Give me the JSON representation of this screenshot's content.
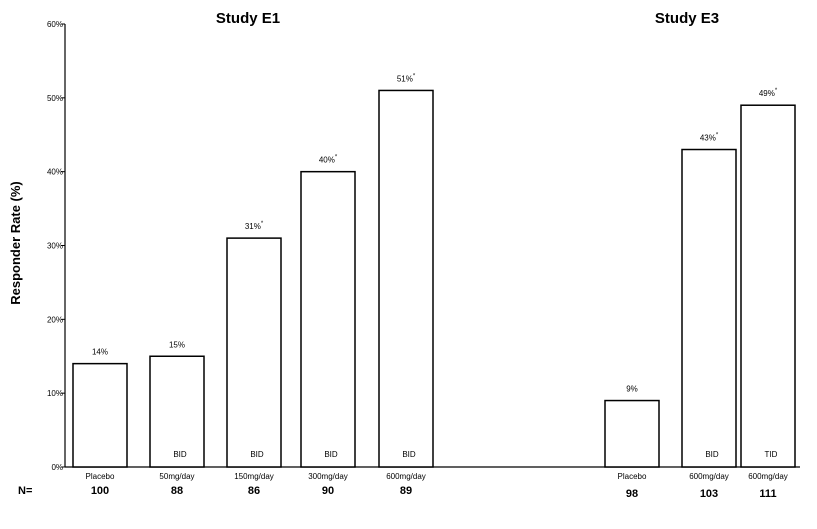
{
  "chart_data": {
    "type": "bar",
    "ylabel": "Responder Rate (%)",
    "ylim": [
      0,
      60
    ],
    "yticks": [
      "0%",
      "10%",
      "20%",
      "30%",
      "40%",
      "50%",
      "60%"
    ],
    "grid": false,
    "n_label": "N=",
    "groups": [
      {
        "title": "Study E1",
        "bars": [
          {
            "category": "Placebo",
            "value": 14,
            "label": "14%",
            "inner": "",
            "n": "100"
          },
          {
            "category": "50mg/day",
            "value": 15,
            "label": "15%",
            "inner": "BID",
            "n": "88"
          },
          {
            "category": "150mg/day",
            "value": 31,
            "label": "31%*",
            "inner": "BID",
            "n": "86"
          },
          {
            "category": "300mg/day",
            "value": 40,
            "label": "40%*",
            "inner": "BID",
            "n": "90"
          },
          {
            "category": "600mg/day",
            "value": 51,
            "label": "51%*",
            "inner": "BID",
            "n": "89"
          }
        ]
      },
      {
        "title": "Study E3",
        "bars": [
          {
            "category": "Placebo",
            "value": 9,
            "label": "9%",
            "inner": "",
            "n": "98"
          },
          {
            "category": "600mg/day",
            "value": 43,
            "label": "43%*",
            "inner": "BID",
            "n": "103"
          },
          {
            "category": "600mg/day",
            "value": 49,
            "label": "49%*",
            "inner": "TID",
            "n": "111"
          }
        ]
      }
    ]
  }
}
